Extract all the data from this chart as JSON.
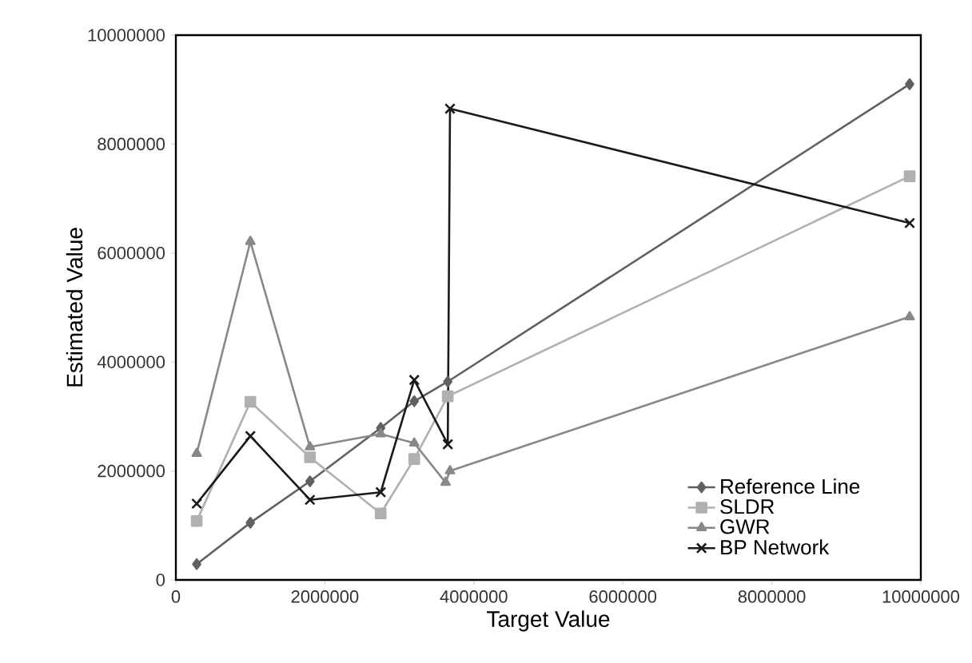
{
  "chart_data": {
    "type": "line",
    "xlabel": "Target Value",
    "ylabel": "Estimated Value",
    "xlim": [
      0,
      10000000
    ],
    "ylim": [
      0,
      10000000
    ],
    "xticks": [
      0,
      2000000,
      4000000,
      6000000,
      8000000,
      10000000
    ],
    "yticks": [
      0,
      2000000,
      4000000,
      6000000,
      8000000,
      10000000
    ],
    "legend": "bottom right",
    "grid": false,
    "series": [
      {
        "name": "Reference Line",
        "color": "#606060",
        "marker": "diamond",
        "x": [
          280000,
          1000000,
          1800000,
          2750000,
          3200000,
          3650000,
          9850000
        ],
        "values": [
          290000,
          1050000,
          1810000,
          2790000,
          3280000,
          3640000,
          9100000
        ]
      },
      {
        "name": "SLDR",
        "color": "#b0b0b0",
        "marker": "square",
        "x": [
          280000,
          1000000,
          1800000,
          2750000,
          3200000,
          3650000,
          9850000
        ],
        "values": [
          1080000,
          3270000,
          2250000,
          1220000,
          2220000,
          3370000,
          7410000
        ]
      },
      {
        "name": "GWR",
        "color": "#888888",
        "marker": "triangle",
        "x": [
          280000,
          1000000,
          1800000,
          2750000,
          3200000,
          3620000,
          3680000,
          9850000
        ],
        "values": [
          2320000,
          6210000,
          2440000,
          2680000,
          2510000,
          1790000,
          2000000,
          4830000
        ]
      },
      {
        "name": "BP Network",
        "color": "#1a1a1a",
        "marker": "cross",
        "x": [
          280000,
          1000000,
          1800000,
          2750000,
          3200000,
          3650000,
          3680000,
          9850000
        ],
        "values": [
          1400000,
          2640000,
          1470000,
          1610000,
          3670000,
          2490000,
          8650000,
          6550000
        ]
      }
    ]
  }
}
